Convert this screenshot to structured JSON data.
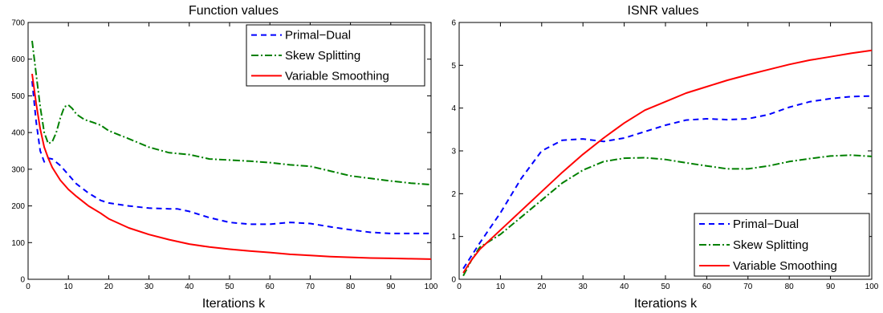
{
  "chart_data": [
    {
      "type": "line",
      "title": "Function values",
      "xlabel": "Iterations k",
      "ylabel": "",
      "xlim": [
        0,
        100
      ],
      "ylim": [
        0,
        700
      ],
      "xticks": [
        0,
        10,
        20,
        30,
        40,
        50,
        60,
        70,
        80,
        90,
        100
      ],
      "yticks": [
        0,
        100,
        200,
        300,
        400,
        500,
        600,
        700
      ],
      "legend_position": "top-right",
      "series": [
        {
          "name": "Primal−Dual",
          "color": "#0000ff",
          "style": "dashed",
          "x": [
            1,
            2,
            3,
            4,
            5,
            6,
            8,
            10,
            12,
            15,
            18,
            20,
            25,
            30,
            35,
            37,
            40,
            45,
            50,
            55,
            60,
            65,
            70,
            75,
            80,
            85,
            90,
            95,
            100
          ],
          "y": [
            540,
            430,
            350,
            320,
            330,
            328,
            310,
            285,
            260,
            235,
            215,
            208,
            200,
            194,
            192,
            192,
            185,
            168,
            155,
            150,
            150,
            155,
            152,
            143,
            135,
            128,
            125,
            125,
            125
          ]
        },
        {
          "name": "Skew Splitting",
          "color": "#008000",
          "style": "dashdot",
          "x": [
            1,
            2,
            3,
            4,
            5,
            6,
            7,
            8,
            9,
            10,
            11,
            12,
            14,
            16,
            18,
            20,
            25,
            30,
            35,
            40,
            45,
            50,
            55,
            60,
            65,
            70,
            75,
            80,
            85,
            90,
            95,
            100
          ],
          "y": [
            650,
            560,
            470,
            400,
            370,
            375,
            400,
            440,
            470,
            475,
            465,
            450,
            435,
            428,
            420,
            405,
            383,
            360,
            345,
            340,
            328,
            325,
            322,
            318,
            312,
            308,
            295,
            282,
            275,
            268,
            262,
            258
          ]
        },
        {
          "name": "Variable Smoothing",
          "color": "#ff0000",
          "style": "solid",
          "x": [
            1,
            2,
            3,
            4,
            5,
            6,
            8,
            10,
            12,
            15,
            18,
            20,
            25,
            30,
            35,
            40,
            45,
            50,
            55,
            60,
            65,
            70,
            75,
            80,
            85,
            90,
            95,
            100
          ],
          "y": [
            560,
            480,
            410,
            360,
            330,
            305,
            270,
            245,
            226,
            200,
            180,
            165,
            140,
            122,
            108,
            96,
            88,
            82,
            77,
            73,
            68,
            65,
            62,
            60,
            58,
            57,
            56,
            55
          ]
        }
      ]
    },
    {
      "type": "line",
      "title": "ISNR values",
      "xlabel": "Iterations k",
      "ylabel": "",
      "xlim": [
        0,
        100
      ],
      "ylim": [
        0,
        6
      ],
      "xticks": [
        0,
        10,
        20,
        30,
        40,
        50,
        60,
        70,
        80,
        90,
        100
      ],
      "yticks": [
        0,
        1,
        2,
        3,
        4,
        5,
        6
      ],
      "legend_position": "bottom-right",
      "series": [
        {
          "name": "Primal−Dual",
          "color": "#0000ff",
          "style": "dashed",
          "x": [
            1,
            3,
            5,
            10,
            15,
            20,
            25,
            30,
            35,
            40,
            45,
            50,
            55,
            60,
            65,
            70,
            75,
            80,
            85,
            90,
            95,
            100
          ],
          "y": [
            0.25,
            0.55,
            0.85,
            1.55,
            2.35,
            3.0,
            3.25,
            3.28,
            3.22,
            3.3,
            3.45,
            3.6,
            3.72,
            3.75,
            3.73,
            3.75,
            3.85,
            4.02,
            4.15,
            4.22,
            4.27,
            4.28
          ]
        },
        {
          "name": "Skew Splitting",
          "color": "#008000",
          "style": "dashdot",
          "x": [
            1,
            3,
            5,
            10,
            15,
            20,
            25,
            30,
            35,
            40,
            45,
            50,
            55,
            60,
            65,
            70,
            75,
            80,
            85,
            90,
            95,
            100
          ],
          "y": [
            0.08,
            0.45,
            0.75,
            1.05,
            1.45,
            1.85,
            2.25,
            2.55,
            2.75,
            2.83,
            2.84,
            2.8,
            2.72,
            2.65,
            2.58,
            2.58,
            2.65,
            2.75,
            2.82,
            2.88,
            2.9,
            2.87
          ]
        },
        {
          "name": "Variable Smoothing",
          "color": "#ff0000",
          "style": "solid",
          "x": [
            1,
            3,
            5,
            10,
            15,
            20,
            25,
            30,
            35,
            40,
            45,
            50,
            55,
            60,
            65,
            70,
            75,
            80,
            85,
            90,
            95,
            100
          ],
          "y": [
            0.15,
            0.45,
            0.7,
            1.15,
            1.6,
            2.05,
            2.5,
            2.92,
            3.3,
            3.65,
            3.95,
            4.15,
            4.35,
            4.5,
            4.65,
            4.78,
            4.9,
            5.02,
            5.12,
            5.2,
            5.28,
            5.35
          ]
        }
      ]
    }
  ]
}
